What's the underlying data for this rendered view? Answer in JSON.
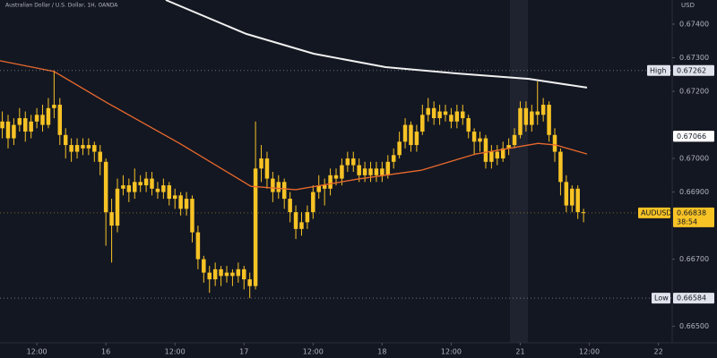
{
  "chart_data": {
    "type": "candlestick",
    "title": "Australian Dollar / U.S. Dollar, 1H, OANDA",
    "currency": "USD",
    "color": "#f7c325",
    "x": [
      -6,
      -5,
      -4,
      -3,
      -2,
      -1,
      0,
      1,
      2,
      3,
      4,
      5,
      6,
      7,
      8,
      9,
      10,
      11,
      12,
      13,
      14,
      15,
      16,
      17,
      18,
      19,
      20,
      21,
      22,
      23,
      24,
      25,
      26,
      27,
      28,
      29,
      30,
      31,
      32,
      33,
      34,
      35,
      36,
      37,
      38,
      39,
      40,
      41,
      42,
      43,
      44,
      45,
      46,
      47,
      48,
      49,
      50,
      51,
      52,
      53,
      54,
      55,
      56,
      57,
      58,
      59,
      60,
      61,
      62,
      63,
      64,
      65,
      66,
      67,
      68,
      69,
      70,
      71,
      72,
      73,
      74,
      75,
      76,
      77,
      78,
      79,
      80,
      81,
      82,
      83,
      84,
      85,
      86,
      87,
      88,
      89,
      90,
      91,
      92,
      93,
      94,
      95
    ],
    "open": [
      0.6709,
      0.6711,
      0.6706,
      0.671,
      0.6712,
      0.6708,
      0.6711,
      0.6713,
      0.671,
      0.6715,
      0.6716,
      0.6707,
      0.6704,
      0.6702,
      0.6704,
      0.6703,
      0.6704,
      0.6702,
      0.6699,
      0.6684,
      0.668,
      0.6691,
      0.6692,
      0.669,
      0.6693,
      0.6692,
      0.6694,
      0.6691,
      0.669,
      0.6692,
      0.6688,
      0.6689,
      0.6685,
      0.6688,
      0.6678,
      0.667,
      0.6666,
      0.6664,
      0.6667,
      0.6665,
      0.6666,
      0.6665,
      0.6667,
      0.6664,
      0.6662,
      0.6697,
      0.67,
      0.6694,
      0.669,
      0.6693,
      0.6688,
      0.6684,
      0.6679,
      0.6681,
      0.6684,
      0.669,
      0.6692,
      0.6691,
      0.6695,
      0.6694,
      0.6698,
      0.67,
      0.6698,
      0.6695,
      0.6697,
      0.6695,
      0.6697,
      0.6695,
      0.6699,
      0.6701,
      0.6705,
      0.671,
      0.6704,
      0.6708,
      0.6713,
      0.6715,
      0.6712,
      0.6714,
      0.6713,
      0.6711,
      0.6714,
      0.6712,
      0.6708,
      0.6705,
      0.6706,
      0.6699,
      0.6702,
      0.67,
      0.6703,
      0.6704,
      0.6707,
      0.6715,
      0.671,
      0.6714,
      0.6713,
      0.6716,
      0.6707,
      0.6702,
      0.6693,
      0.6686,
      0.6691,
      0.6684
    ],
    "high": [
      0.6714,
      0.6713,
      0.6712,
      0.6715,
      0.6714,
      0.6713,
      0.6715,
      0.6716,
      0.6718,
      0.67262,
      0.6718,
      0.6709,
      0.6706,
      0.6706,
      0.6706,
      0.6706,
      0.6705,
      0.6704,
      0.67,
      0.6688,
      0.6694,
      0.6695,
      0.6694,
      0.6697,
      0.6695,
      0.6696,
      0.6696,
      0.6693,
      0.6694,
      0.6693,
      0.6691,
      0.669,
      0.669,
      0.6689,
      0.668,
      0.6671,
      0.6668,
      0.6669,
      0.6668,
      0.6668,
      0.6667,
      0.6669,
      0.6668,
      0.6666,
      0.6711,
      0.6704,
      0.6702,
      0.6696,
      0.6695,
      0.6694,
      0.669,
      0.6686,
      0.6684,
      0.6686,
      0.6692,
      0.6695,
      0.6694,
      0.6697,
      0.6697,
      0.67,
      0.6702,
      0.6702,
      0.67,
      0.6699,
      0.6699,
      0.6699,
      0.6699,
      0.6701,
      0.6703,
      0.6708,
      0.6712,
      0.6711,
      0.671,
      0.6716,
      0.6718,
      0.6717,
      0.6716,
      0.6716,
      0.6715,
      0.6716,
      0.6716,
      0.6713,
      0.6709,
      0.6708,
      0.6707,
      0.6704,
      0.6704,
      0.6705,
      0.6706,
      0.6709,
      0.6717,
      0.6717,
      0.6716,
      0.6723,
      0.6718,
      0.6717,
      0.6709,
      0.6703,
      0.6695,
      0.6692,
      0.6692,
      0.6685
    ],
    "low": [
      0.6706,
      0.6703,
      0.6704,
      0.6708,
      0.6705,
      0.6706,
      0.6709,
      0.6708,
      0.6709,
      0.6712,
      0.6704,
      0.67,
      0.6699,
      0.67,
      0.6701,
      0.6701,
      0.6699,
      0.6695,
      0.6674,
      0.6669,
      0.6678,
      0.6689,
      0.6687,
      0.6688,
      0.669,
      0.669,
      0.6689,
      0.6688,
      0.6688,
      0.6686,
      0.6685,
      0.6683,
      0.6683,
      0.6675,
      0.6667,
      0.6663,
      0.666,
      0.6662,
      0.6662,
      0.6663,
      0.6662,
      0.6663,
      0.6661,
      0.66584,
      0.6661,
      0.6693,
      0.6691,
      0.6687,
      0.6688,
      0.6685,
      0.6681,
      0.6676,
      0.6677,
      0.6679,
      0.6682,
      0.6688,
      0.6686,
      0.6689,
      0.6692,
      0.6692,
      0.6696,
      0.6696,
      0.6693,
      0.6693,
      0.6693,
      0.6693,
      0.6693,
      0.6694,
      0.6697,
      0.67,
      0.6703,
      0.6702,
      0.6702,
      0.6707,
      0.6711,
      0.671,
      0.671,
      0.6711,
      0.6709,
      0.6709,
      0.671,
      0.6706,
      0.6701,
      0.6702,
      0.6697,
      0.6697,
      0.6698,
      0.6699,
      0.6701,
      0.6703,
      0.6706,
      0.6708,
      0.6708,
      0.671,
      0.6711,
      0.6705,
      0.6699,
      0.6689,
      0.6684,
      0.6684,
      0.6682,
      0.6681
    ],
    "close": [
      0.6711,
      0.6706,
      0.671,
      0.6712,
      0.6708,
      0.6711,
      0.6713,
      0.671,
      0.6715,
      0.6716,
      0.6707,
      0.6704,
      0.6702,
      0.6704,
      0.6703,
      0.6704,
      0.6702,
      0.6699,
      0.6684,
      0.668,
      0.6691,
      0.6692,
      0.669,
      0.6693,
      0.6692,
      0.6694,
      0.6691,
      0.669,
      0.6692,
      0.6688,
      0.6689,
      0.6685,
      0.6688,
      0.6678,
      0.667,
      0.6666,
      0.6664,
      0.6667,
      0.6665,
      0.6666,
      0.6665,
      0.6667,
      0.6664,
      0.6662,
      0.6697,
      0.67,
      0.6694,
      0.669,
      0.6693,
      0.6688,
      0.6684,
      0.6679,
      0.6681,
      0.6684,
      0.669,
      0.6692,
      0.6691,
      0.6695,
      0.6694,
      0.6698,
      0.67,
      0.6698,
      0.6695,
      0.6697,
      0.6695,
      0.6697,
      0.6695,
      0.6699,
      0.6701,
      0.6705,
      0.671,
      0.6704,
      0.6708,
      0.6713,
      0.6715,
      0.6712,
      0.6714,
      0.6713,
      0.6711,
      0.6714,
      0.6712,
      0.6708,
      0.6705,
      0.6706,
      0.6699,
      0.6702,
      0.67,
      0.6703,
      0.6704,
      0.6707,
      0.6715,
      0.671,
      0.6714,
      0.6713,
      0.6716,
      0.6707,
      0.6702,
      0.6693,
      0.6686,
      0.6691,
      0.6684,
      0.66838
    ],
    "overlays": [
      {
        "color": "#e8692c",
        "x": [
          -6.4,
          3.0,
          12.3,
          24.8,
          37.2,
          45.0,
          55.9,
          66.8,
          76.2,
          87.1,
          90.2,
          95.6
        ],
        "values": [
          0.67291,
          0.67259,
          0.67165,
          0.67045,
          0.66917,
          0.66907,
          0.66939,
          0.66965,
          0.67013,
          0.67045,
          0.6704,
          0.67013
        ]
      },
      {
        "color": "#f0f0f0",
        "x": [
          22.4,
          36.4,
          48.1,
          60.6,
          73.1,
          85.5,
          95.6
        ],
        "values": [
          0.67472,
          0.67371,
          0.67312,
          0.67272,
          0.67253,
          0.67237,
          0.67211
        ]
      }
    ],
    "xlim": [
      -6.4,
      110.4
    ],
    "xticks": [
      {
        "value": 0,
        "label": "12:00"
      },
      {
        "value": 12,
        "label": "16"
      },
      {
        "value": 24,
        "label": "12:00"
      },
      {
        "value": 36,
        "label": "17"
      },
      {
        "value": 48,
        "label": "12:00"
      },
      {
        "value": 60,
        "label": "18"
      },
      {
        "value": 72,
        "label": "12:00"
      },
      {
        "value": 84,
        "label": "21"
      },
      {
        "value": 96,
        "label": "12:00"
      },
      {
        "value": 108,
        "label": "22"
      }
    ],
    "ylim": [
      0.66451,
      0.67472
    ],
    "yticks": [
      {
        "value": 0.674,
        "label": "0.67400"
      },
      {
        "value": 0.673,
        "label": "0.67300"
      },
      {
        "value": 0.672,
        "label": "0.67200"
      },
      {
        "value": 0.67,
        "label": "0.67000"
      },
      {
        "value": 0.669,
        "label": "0.66900"
      },
      {
        "value": 0.667,
        "label": "0.66700"
      },
      {
        "value": 0.665,
        "label": "0.66500"
      }
    ],
    "price_labels": [
      {
        "label": "High",
        "value": 0.67262,
        "color": "#e0e3eb"
      },
      {
        "value": 0.67066,
        "color": "#ffd9cc"
      },
      {
        "value": 0.67066,
        "color": "#ffffff"
      },
      {
        "label": "AUDUSD",
        "value": 0.66838,
        "countdown": "38:54",
        "color": "#f7c325"
      },
      {
        "label": "Low",
        "value": 0.66584,
        "color": "#e0e3eb"
      }
    ]
  }
}
